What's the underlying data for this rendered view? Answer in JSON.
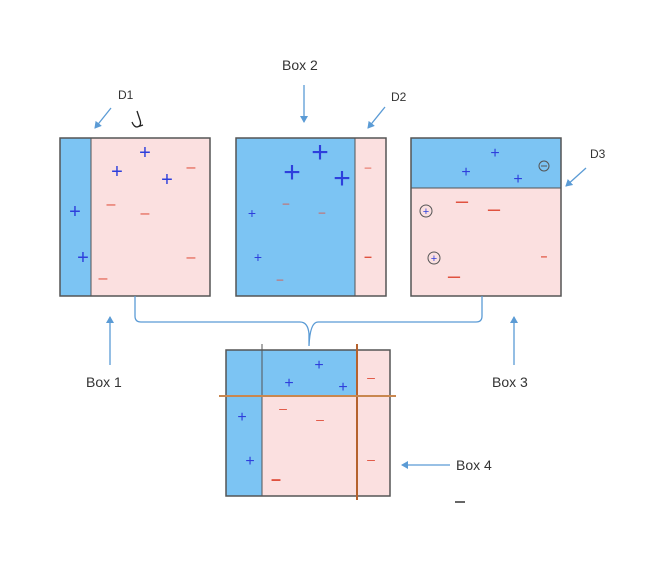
{
  "labels": {
    "box1": "Box 1",
    "box2": "Box 2",
    "box3": "Box 3",
    "box4": "Box 4",
    "d1": "D1",
    "d2": "D2",
    "d3": "D3"
  },
  "symbols": {
    "plus": "+",
    "minus": "–"
  },
  "colors": {
    "positive_region": "#7cc4f3",
    "negative_region": "#fbe0e0",
    "plus_mark": "#2e3fdc",
    "minus_mark": "#e0523f",
    "arrow": "#5b9bd5",
    "box_border": "#555555",
    "final_boundary": "#b5622e"
  }
}
